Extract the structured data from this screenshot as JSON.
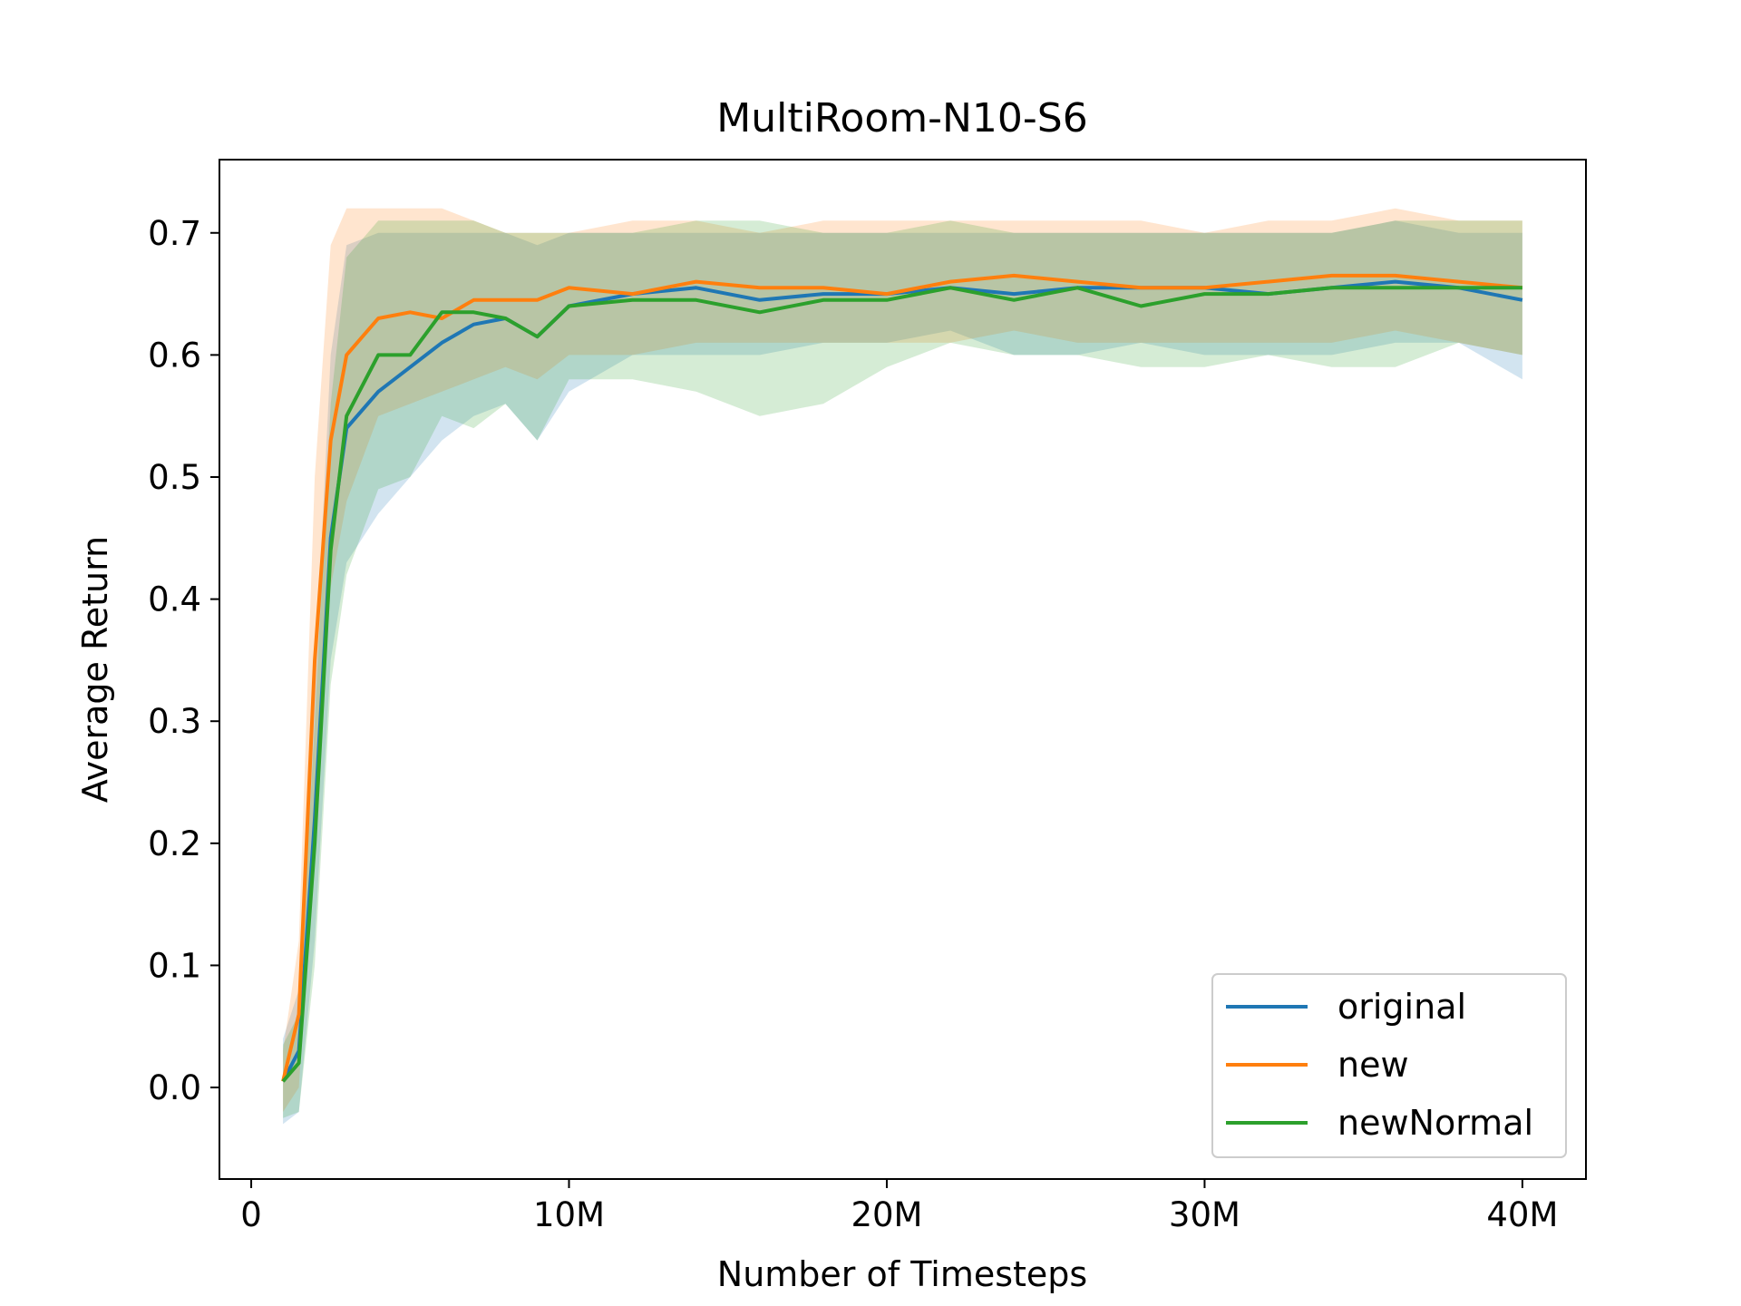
{
  "chart_data": {
    "type": "line",
    "title": "MultiRoom-N10-S6",
    "xlabel": "Number of Timesteps",
    "ylabel": "Average Return",
    "xlim": [
      -1000000,
      42000000
    ],
    "ylim": [
      -0.075,
      0.76
    ],
    "xticks": [
      {
        "value": 0,
        "label": "0"
      },
      {
        "value": 10000000,
        "label": "10M"
      },
      {
        "value": 20000000,
        "label": "20M"
      },
      {
        "value": 30000000,
        "label": "30M"
      },
      {
        "value": 40000000,
        "label": "40M"
      }
    ],
    "yticks": [
      {
        "value": 0.0,
        "label": "0.0"
      },
      {
        "value": 0.1,
        "label": "0.1"
      },
      {
        "value": 0.2,
        "label": "0.2"
      },
      {
        "value": 0.3,
        "label": "0.3"
      },
      {
        "value": 0.4,
        "label": "0.4"
      },
      {
        "value": 0.5,
        "label": "0.5"
      },
      {
        "value": 0.6,
        "label": "0.6"
      },
      {
        "value": 0.7,
        "label": "0.7"
      }
    ],
    "grid": false,
    "legend_position": "bottom-right",
    "x": [
      1000000,
      1500000,
      2000000,
      2500000,
      3000000,
      4000000,
      5000000,
      6000000,
      7000000,
      8000000,
      9000000,
      10000000,
      12000000,
      14000000,
      16000000,
      18000000,
      20000000,
      22000000,
      24000000,
      26000000,
      28000000,
      30000000,
      32000000,
      34000000,
      36000000,
      38000000,
      40000000
    ],
    "series": [
      {
        "name": "original",
        "color": "#1f77b4",
        "values": [
          0.005,
          0.03,
          0.22,
          0.45,
          0.54,
          0.57,
          0.59,
          0.61,
          0.625,
          0.63,
          0.615,
          0.64,
          0.65,
          0.655,
          0.645,
          0.65,
          0.65,
          0.655,
          0.65,
          0.655,
          0.655,
          0.655,
          0.65,
          0.655,
          0.66,
          0.655,
          0.645
        ],
        "lower": [
          -0.03,
          -0.02,
          0.12,
          0.35,
          0.43,
          0.47,
          0.5,
          0.53,
          0.55,
          0.56,
          0.53,
          0.57,
          0.6,
          0.6,
          0.6,
          0.61,
          0.61,
          0.62,
          0.6,
          0.6,
          0.61,
          0.6,
          0.6,
          0.6,
          0.61,
          0.61,
          0.58
        ],
        "upper": [
          0.04,
          0.08,
          0.33,
          0.6,
          0.69,
          0.7,
          0.7,
          0.7,
          0.7,
          0.7,
          0.69,
          0.7,
          0.7,
          0.7,
          0.7,
          0.7,
          0.7,
          0.7,
          0.7,
          0.7,
          0.7,
          0.7,
          0.7,
          0.7,
          0.71,
          0.7,
          0.7
        ]
      },
      {
        "name": "new",
        "color": "#ff7f0e",
        "values": [
          0.005,
          0.06,
          0.35,
          0.53,
          0.6,
          0.63,
          0.635,
          0.63,
          0.645,
          0.645,
          0.645,
          0.655,
          0.65,
          0.66,
          0.655,
          0.655,
          0.65,
          0.66,
          0.665,
          0.66,
          0.655,
          0.655,
          0.66,
          0.665,
          0.665,
          0.66,
          0.655
        ],
        "lower": [
          -0.02,
          0.0,
          0.22,
          0.41,
          0.48,
          0.55,
          0.56,
          0.57,
          0.58,
          0.59,
          0.58,
          0.6,
          0.6,
          0.61,
          0.61,
          0.61,
          0.61,
          0.61,
          0.62,
          0.61,
          0.61,
          0.61,
          0.61,
          0.61,
          0.62,
          0.61,
          0.6
        ],
        "upper": [
          0.03,
          0.12,
          0.5,
          0.69,
          0.72,
          0.72,
          0.72,
          0.72,
          0.71,
          0.7,
          0.7,
          0.7,
          0.71,
          0.71,
          0.7,
          0.71,
          0.71,
          0.71,
          0.71,
          0.71,
          0.71,
          0.7,
          0.71,
          0.71,
          0.72,
          0.71,
          0.71
        ]
      },
      {
        "name": "newNormal",
        "color": "#2ca02c",
        "values": [
          0.005,
          0.02,
          0.2,
          0.44,
          0.55,
          0.6,
          0.6,
          0.635,
          0.635,
          0.63,
          0.615,
          0.64,
          0.645,
          0.645,
          0.635,
          0.645,
          0.645,
          0.655,
          0.645,
          0.655,
          0.64,
          0.65,
          0.65,
          0.655,
          0.655,
          0.655,
          0.655
        ],
        "lower": [
          -0.025,
          -0.02,
          0.1,
          0.33,
          0.42,
          0.49,
          0.5,
          0.55,
          0.54,
          0.56,
          0.53,
          0.58,
          0.58,
          0.57,
          0.55,
          0.56,
          0.59,
          0.61,
          0.6,
          0.6,
          0.59,
          0.59,
          0.6,
          0.59,
          0.59,
          0.61,
          0.6
        ],
        "upper": [
          0.035,
          0.06,
          0.3,
          0.56,
          0.68,
          0.71,
          0.71,
          0.71,
          0.71,
          0.7,
          0.7,
          0.7,
          0.7,
          0.71,
          0.71,
          0.7,
          0.7,
          0.71,
          0.7,
          0.7,
          0.7,
          0.7,
          0.7,
          0.7,
          0.71,
          0.71,
          0.71
        ]
      }
    ]
  }
}
